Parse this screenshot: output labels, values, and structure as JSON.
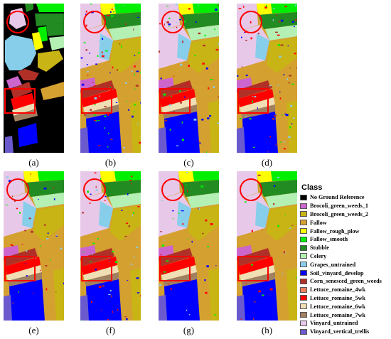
{
  "panels": [
    {
      "id": "a",
      "caption": "(a)",
      "kind": "ground_truth"
    },
    {
      "id": "b",
      "caption": "(b)",
      "kind": "classification",
      "noise": 0.9
    },
    {
      "id": "c",
      "caption": "(c)",
      "kind": "classification",
      "noise": 0.7
    },
    {
      "id": "d",
      "caption": "(d)",
      "kind": "classification",
      "noise": 0.8
    },
    {
      "id": "e",
      "caption": "(e)",
      "kind": "classification",
      "noise": 0.5
    },
    {
      "id": "f",
      "caption": "(f)",
      "kind": "classification",
      "noise": 0.6
    },
    {
      "id": "g",
      "caption": "(g)",
      "kind": "classification",
      "noise": 0.4
    },
    {
      "id": "h",
      "caption": "(h)",
      "kind": "classification",
      "noise": 0.3
    }
  ],
  "legend": {
    "title": "Class",
    "items": [
      {
        "label": "No Ground Reference",
        "color": "#000000"
      },
      {
        "label": "Brocoli_green_weeds_1",
        "color": "#cc66cc"
      },
      {
        "label": "Brocoli_green_weeds_2",
        "color": "#c8b414"
      },
      {
        "label": "Fallow",
        "color": "#d4a030"
      },
      {
        "label": "Fallow_rough_plow",
        "color": "#ffff00"
      },
      {
        "label": "Fallow_smooth",
        "color": "#00ee00"
      },
      {
        "label": "Stubble",
        "color": "#228b22"
      },
      {
        "label": "Celery",
        "color": "#b4f0b4"
      },
      {
        "label": "Grapes_untrained",
        "color": "#87ceeb"
      },
      {
        "label": "Soil_vinyard_develop",
        "color": "#0000ff"
      },
      {
        "label": "Corn_senesced_green_weeds",
        "color": "#b03028"
      },
      {
        "label": "Lettuce_romaine_4wk",
        "color": "#f08060"
      },
      {
        "label": "Lettuce_romaine_5wk",
        "color": "#ff0000"
      },
      {
        "label": "Lettuce_romaine_6wk",
        "color": "#f0deb4"
      },
      {
        "label": "Lettuce_romaine_7wk",
        "color": "#a08060"
      },
      {
        "label": "Vinyard_untrained",
        "color": "#e8c8e8"
      },
      {
        "label": "Vinyard_vertical_trellis",
        "color": "#6a5acd"
      }
    ]
  },
  "highlight_color": "#ff0000"
}
